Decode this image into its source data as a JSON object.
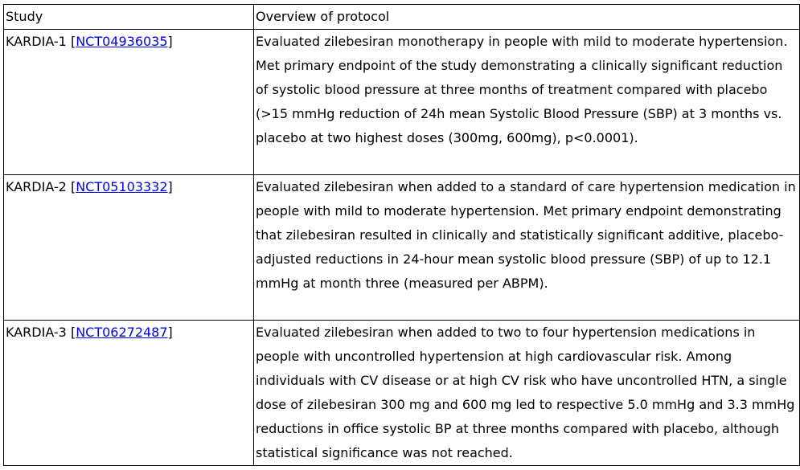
{
  "table": {
    "headers": {
      "study": "Study",
      "overview": "Overview of protocol"
    },
    "rows": [
      {
        "study": "KARDIA-1",
        "nct": "NCT04936035",
        "overview": "Evaluated zilebesiran monotherapy in people with mild to moderate hypertension. Met primary endpoint of the study demonstrating a clinically significant reduction of systolic blood pressure at three months of treatment compared with placebo (>15 mmHg reduction of 24h mean Systolic Blood Pressure (SBP) at 3 months vs. placebo at two highest doses (300mg, 600mg), p<0.0001)."
      },
      {
        "study": "KARDIA-2",
        "nct": "NCT05103332",
        "overview": "Evaluated zilebesiran when added to a standard of care hypertension medication in people with mild to moderate hypertension. Met primary endpoint demonstrating that zilebesiran resulted in clinically and statistically significant additive, placebo-adjusted reductions in 24-hour mean systolic blood pressure (SBP) of up to 12.1 mmHg at month three  (measured per ABPM)."
      },
      {
        "study": "KARDIA-3",
        "nct": "NCT06272487",
        "overview": "Evaluated zilebesiran when added to two to four hypertension medications in people with uncontrolled hypertension at high cardiovascular risk. Among individuals with CV disease or at high CV risk who have uncontrolled HTN, a single dose of zilebesiran 300 mg and 600 mg led to respective 5.0 mmHg and 3.3 mmHg reductions in office systolic BP at three months compared with placebo, although statistical significance was not reached."
      }
    ]
  }
}
